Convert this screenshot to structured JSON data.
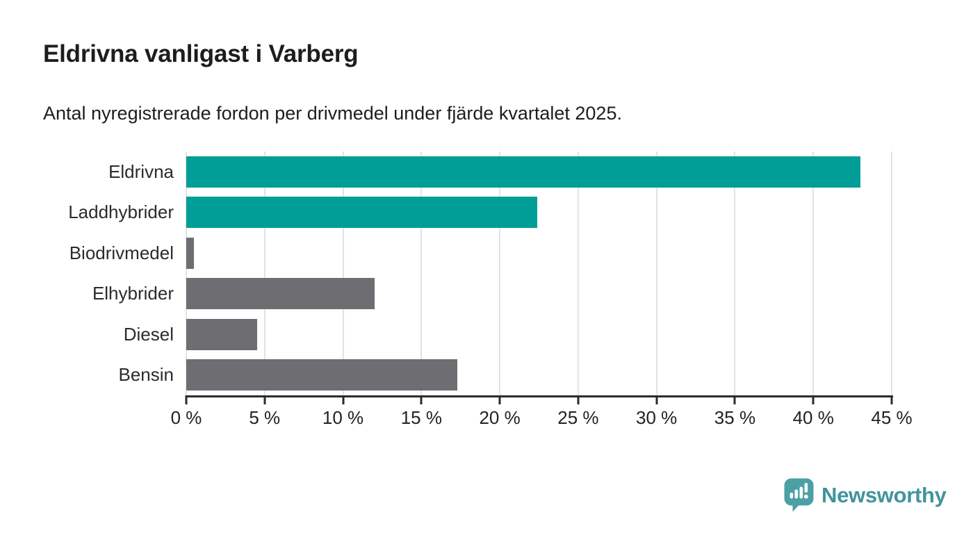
{
  "header": {
    "title": "Eldrivna vanligast i Varberg",
    "subtitle": "Antal nyregistrerade fordon per drivmedel under fjärde kvartalet 2025."
  },
  "chart_data": {
    "type": "bar",
    "orientation": "horizontal",
    "title": "Eldrivna vanligast i Varberg",
    "subtitle": "Antal nyregistrerade fordon per drivmedel under fjärde kvartalet 2025.",
    "categories": [
      "Eldrivna",
      "Laddhybrider",
      "Biodrivmedel",
      "Elhybrider",
      "Diesel",
      "Bensin"
    ],
    "values": [
      43.0,
      22.4,
      0.5,
      12.0,
      4.5,
      17.3
    ],
    "unit": "%",
    "bar_colors": [
      "#009E96",
      "#009E96",
      "#6D6D72",
      "#6D6D72",
      "#6D6D72",
      "#6D6D72"
    ],
    "xlabel": "",
    "ylabel": "",
    "xlim": [
      0,
      45
    ],
    "x_ticks": [
      0,
      5,
      10,
      15,
      20,
      25,
      30,
      35,
      40,
      45
    ],
    "x_tick_labels": [
      "0 %",
      "5 %",
      "10 %",
      "15 %",
      "20 %",
      "25 %",
      "30 %",
      "35 %",
      "40 %",
      "45 %"
    ],
    "grid": true,
    "legend": false
  },
  "colors": {
    "accent_teal": "#009E96",
    "bar_gray": "#6D6D72",
    "gridline": "#E3E3E3",
    "axis": "#2B2B2B",
    "text": "#1D1D1D",
    "brand_icon_teal": "#4BA0A5",
    "brand_text_teal": "#41949C"
  },
  "footer": {
    "brand": "Newsworthy"
  }
}
